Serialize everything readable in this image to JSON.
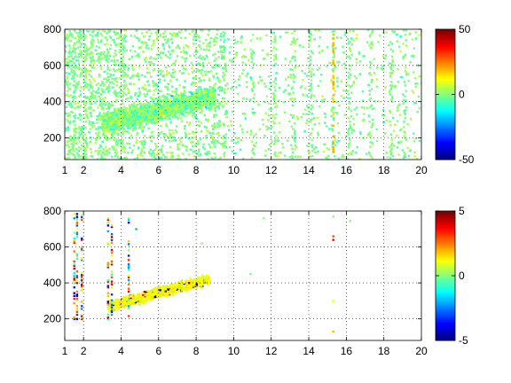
{
  "chart_data": [
    {
      "type": "heatmap",
      "title": "",
      "xlabel": "",
      "ylabel": "",
      "xlim": [
        1,
        20
      ],
      "ylim": [
        80,
        800
      ],
      "xticks": [
        1,
        2,
        4,
        6,
        8,
        10,
        12,
        14,
        16,
        18,
        20
      ],
      "yticks": [
        200,
        400,
        600,
        800
      ],
      "grid": true,
      "clim": [
        -50,
        50
      ],
      "colorbar_ticks": [
        -50,
        0,
        50
      ],
      "colormap": "jet",
      "description_of_values": "sparse scatter of values near 0 (cyan/green) across the full range, with a dense band of values between about 250 and 450 on y for x between 3 and 9",
      "points": [
        {
          "x": 4.5,
          "y": 300,
          "v": -30
        },
        {
          "x": 5.0,
          "y": 330,
          "v": -20
        },
        {
          "x": 5.5,
          "y": 360,
          "v": -10
        },
        {
          "x": 6.0,
          "y": 350,
          "v": -25
        },
        {
          "x": 6.5,
          "y": 380,
          "v": 20
        },
        {
          "x": 7.0,
          "y": 340,
          "v": 30
        },
        {
          "x": 7.5,
          "y": 400,
          "v": 10
        },
        {
          "x": 8.0,
          "y": 420,
          "v": 5
        },
        {
          "x": 8.5,
          "y": 450,
          "v": 0
        },
        {
          "x": 15.3,
          "y": 700,
          "v": 15
        },
        {
          "x": 15.3,
          "y": 440,
          "v": 20
        }
      ]
    },
    {
      "type": "heatmap",
      "title": "",
      "xlabel": "",
      "ylabel": "",
      "xlim": [
        1,
        20
      ],
      "ylim": [
        80,
        800
      ],
      "xticks": [
        1,
        2,
        4,
        6,
        8,
        10,
        12,
        14,
        16,
        18,
        20
      ],
      "yticks": [
        200,
        400,
        600,
        800
      ],
      "grid": true,
      "clim": [
        -5,
        5
      ],
      "colorbar_ticks": [
        -5,
        0,
        5
      ],
      "colormap": "jet",
      "points": [
        {
          "x": 1.5,
          "y": 750,
          "v": 4
        },
        {
          "x": 1.6,
          "y": 500,
          "v": 5
        },
        {
          "x": 3.3,
          "y": 620,
          "v": -4
        },
        {
          "x": 3.5,
          "y": 580,
          "v": 4
        },
        {
          "x": 4.8,
          "y": 360,
          "v": 3
        },
        {
          "x": 5.2,
          "y": 340,
          "v": 4
        },
        {
          "x": 5.8,
          "y": 380,
          "v": -3
        },
        {
          "x": 6.2,
          "y": 340,
          "v": 1
        },
        {
          "x": 7.0,
          "y": 320,
          "v": 1
        },
        {
          "x": 8.0,
          "y": 380,
          "v": 1
        },
        {
          "x": 15.3,
          "y": 660,
          "v": 2
        }
      ]
    }
  ]
}
